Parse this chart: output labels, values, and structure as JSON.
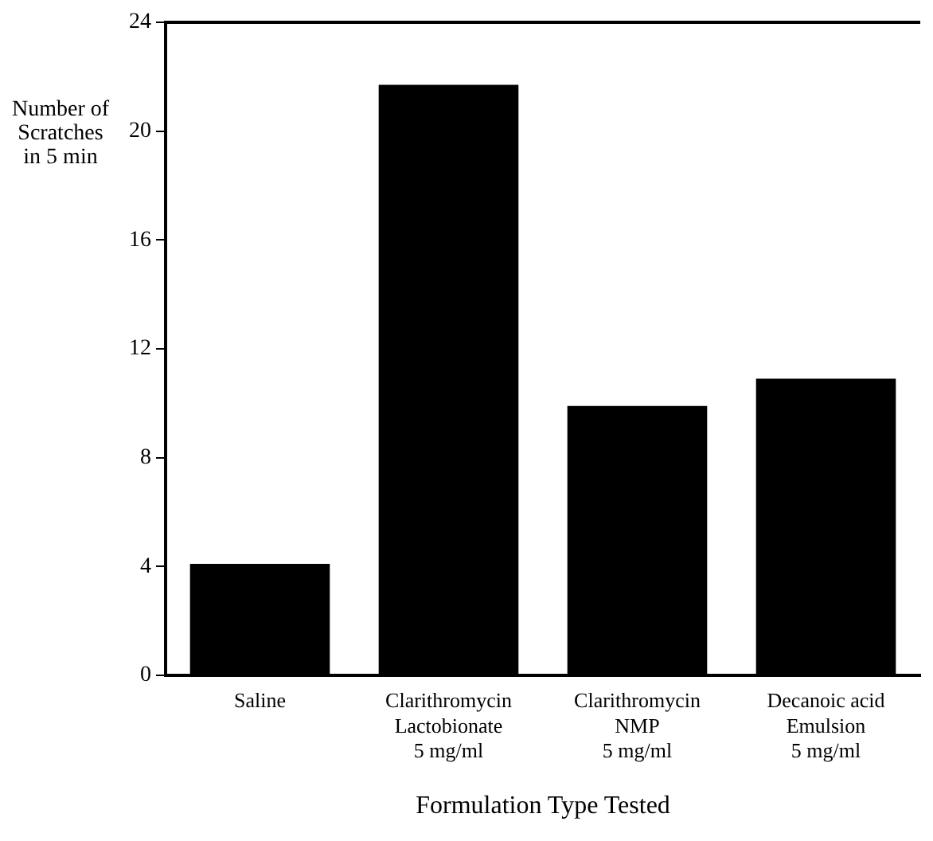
{
  "chart_data": {
    "type": "bar",
    "xlabel": "Formulation Type Tested",
    "ylabel": "Number of\nScratches\nin 5 min",
    "categories": [
      "Saline",
      "Clarithromycin\nLactobionate\n5 mg/ml",
      "Clarithromycin\nNMP\n5 mg/ml",
      "Decanoic acid\nEmulsion\n5 mg/ml"
    ],
    "values": [
      4.1,
      21.7,
      9.9,
      10.9
    ],
    "color": "#000000",
    "ylim": [
      0,
      24
    ],
    "yticks": [
      0,
      4,
      8,
      12,
      16,
      20,
      24
    ],
    "grid": false,
    "legend": false
  }
}
